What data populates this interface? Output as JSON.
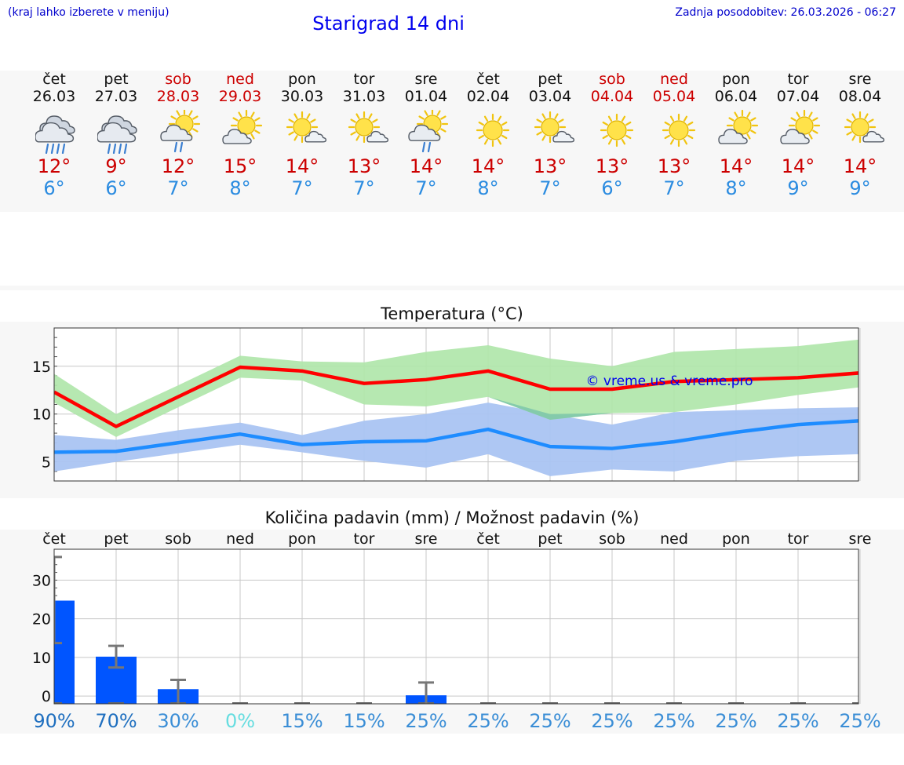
{
  "header": {
    "left_note": "(kraj lahko izberete v meniju)",
    "title": "Starigrad 14 dni",
    "updated": "Zadnja posodobitev: 26.03.2026 - 06:27"
  },
  "days": [
    {
      "name": "čet",
      "date": "26.03",
      "icon": "rain",
      "tmax": "12°",
      "tmin": "6°",
      "weekend": false
    },
    {
      "name": "pet",
      "date": "27.03",
      "icon": "rain",
      "tmax": "9°",
      "tmin": "6°",
      "weekend": false
    },
    {
      "name": "sob",
      "date": "28.03",
      "icon": "sun-cloud-drizzle",
      "tmax": "12°",
      "tmin": "7°",
      "weekend": true
    },
    {
      "name": "ned",
      "date": "29.03",
      "icon": "sun-cloud",
      "tmax": "15°",
      "tmin": "8°",
      "weekend": true
    },
    {
      "name": "pon",
      "date": "30.03",
      "icon": "sun-small-cloud",
      "tmax": "14°",
      "tmin": "7°",
      "weekend": false
    },
    {
      "name": "tor",
      "date": "31.03",
      "icon": "sun-small-cloud",
      "tmax": "13°",
      "tmin": "7°",
      "weekend": false
    },
    {
      "name": "sre",
      "date": "01.04",
      "icon": "sun-cloud-drizzle",
      "tmax": "14°",
      "tmin": "7°",
      "weekend": false
    },
    {
      "name": "čet",
      "date": "02.04",
      "icon": "sun",
      "tmax": "14°",
      "tmin": "8°",
      "weekend": false
    },
    {
      "name": "pet",
      "date": "03.04",
      "icon": "sun-small-cloud",
      "tmax": "13°",
      "tmin": "7°",
      "weekend": false
    },
    {
      "name": "sob",
      "date": "04.04",
      "icon": "sun",
      "tmax": "13°",
      "tmin": "6°",
      "weekend": true
    },
    {
      "name": "ned",
      "date": "05.04",
      "icon": "sun",
      "tmax": "13°",
      "tmin": "7°",
      "weekend": true
    },
    {
      "name": "pon",
      "date": "06.04",
      "icon": "sun-cloud",
      "tmax": "14°",
      "tmin": "8°",
      "weekend": false
    },
    {
      "name": "tor",
      "date": "07.04",
      "icon": "sun-cloud",
      "tmax": "14°",
      "tmin": "9°",
      "weekend": false
    },
    {
      "name": "sre",
      "date": "08.04",
      "icon": "sun-small-cloud",
      "tmax": "14°",
      "tmin": "9°",
      "weekend": false
    }
  ],
  "colors": {
    "max_line": "#ff0000",
    "max_band": "#aee6a8",
    "min_line": "#1e8cff",
    "min_band": "#aac4f2",
    "overlap_band": "#7dc6aa",
    "bar": "#0055ff",
    "error": "#777777",
    "weekend": "#cc0000"
  },
  "chart_data": [
    {
      "type": "line",
      "title": "Temperatura (°C)",
      "watermark": "© vreme.us & vreme.pro",
      "categories": [
        "čet",
        "pet",
        "sob",
        "ned",
        "pon",
        "tor",
        "sre",
        "čet",
        "pet",
        "sob",
        "ned",
        "pon",
        "tor",
        "sre"
      ],
      "ylim": [
        3,
        19
      ],
      "yticks": [
        5,
        10,
        15
      ],
      "series": [
        {
          "name": "max",
          "values": [
            12.3,
            8.7,
            11.8,
            14.9,
            14.5,
            13.2,
            13.6,
            14.5,
            12.6,
            12.6,
            13.4,
            13.6,
            13.8,
            14.3
          ],
          "band_low": [
            11.2,
            7.6,
            10.7,
            13.8,
            13.5,
            11.0,
            10.8,
            11.8,
            9.4,
            10.1,
            10.2,
            11.0,
            12.0,
            12.8
          ],
          "band_high": [
            14.2,
            10.0,
            13.0,
            16.1,
            15.5,
            15.4,
            16.5,
            17.2,
            15.8,
            15.0,
            16.5,
            16.8,
            17.1,
            17.8
          ]
        },
        {
          "name": "min",
          "values": [
            6.0,
            6.1,
            7.0,
            7.9,
            6.8,
            7.1,
            7.2,
            8.4,
            6.6,
            6.4,
            7.1,
            8.1,
            8.9,
            9.3
          ],
          "band_low": [
            4.0,
            5.0,
            5.9,
            6.8,
            6.0,
            5.1,
            4.4,
            5.8,
            3.5,
            4.2,
            4.0,
            5.1,
            5.6,
            5.8
          ],
          "band_high": [
            7.8,
            7.3,
            8.3,
            9.1,
            7.8,
            9.3,
            10.0,
            11.2,
            10.0,
            8.9,
            10.2,
            10.4,
            10.6,
            10.7
          ]
        }
      ]
    },
    {
      "type": "bar",
      "title": "Količina padavin (mm) / Možnost padavin (%)",
      "categories": [
        "čet",
        "pet",
        "sob",
        "ned",
        "pon",
        "tor",
        "sre",
        "čet",
        "pet",
        "sob",
        "ned",
        "pon",
        "tor",
        "sre"
      ],
      "ylim": [
        -2,
        38
      ],
      "yticks": [
        0,
        10,
        20,
        30
      ],
      "values": [
        24.7,
        10.2,
        1.8,
        0,
        0,
        0,
        0.2,
        0,
        0,
        0,
        0,
        0,
        0,
        0
      ],
      "err_low": [
        13.7,
        7.4,
        0,
        0,
        0,
        0,
        0,
        0,
        0,
        0,
        0,
        0,
        0,
        0
      ],
      "err_high": [
        36.0,
        13.0,
        4.2,
        0,
        0,
        0,
        3.5,
        0,
        0,
        0,
        0,
        0,
        0,
        0
      ],
      "probability": [
        "90%",
        "70%",
        "30%",
        "0%",
        "15%",
        "15%",
        "25%",
        "25%",
        "25%",
        "25%",
        "25%",
        "25%",
        "25%",
        "25%"
      ],
      "probability_colors": [
        "#1f6fbf",
        "#1f6fbf",
        "#3b8ed6",
        "#66dde0",
        "#3b8ed6",
        "#3b8ed6",
        "#3b8ed6",
        "#3b8ed6",
        "#3b8ed6",
        "#3b8ed6",
        "#3b8ed6",
        "#3b8ed6",
        "#3b8ed6",
        "#3b8ed6"
      ]
    }
  ]
}
